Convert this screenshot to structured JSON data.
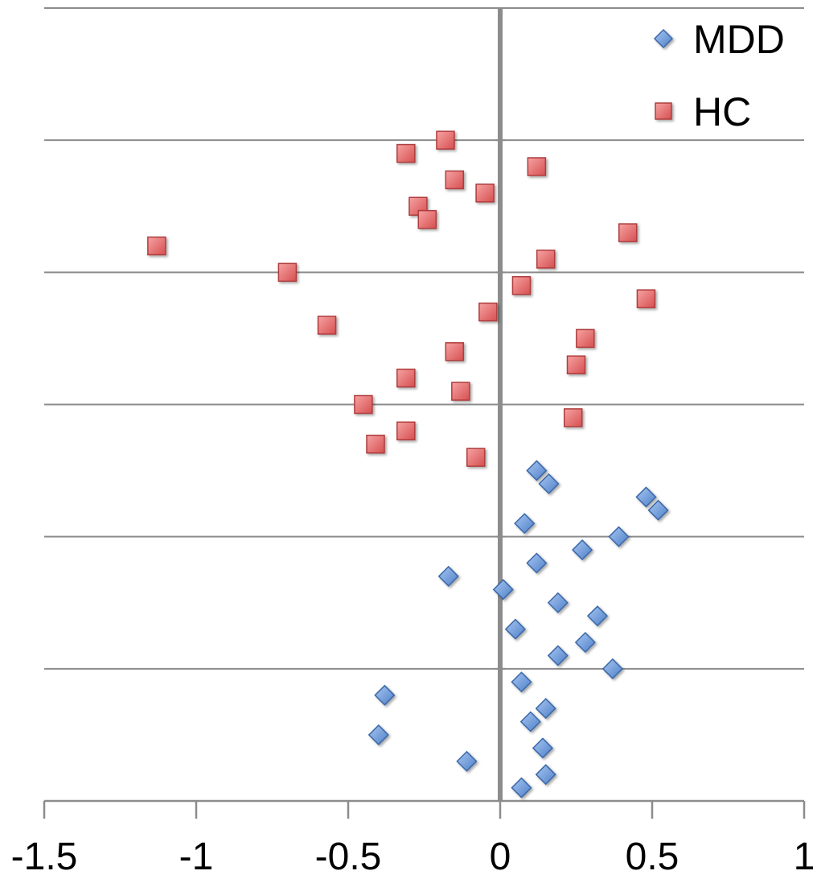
{
  "chart_data": {
    "type": "scatter",
    "title": "",
    "xlabel": "",
    "ylabel": "",
    "xlim": [
      -1.5,
      1
    ],
    "ylim": [
      0,
      60
    ],
    "x_ticks": [
      -1.5,
      -1,
      -0.5,
      0,
      0.5,
      1
    ],
    "x_tick_labels": [
      "-1.5",
      "-1",
      "-0.5",
      "0",
      "0.5",
      "1"
    ],
    "y_gridlines": [
      10,
      20,
      30,
      40,
      50,
      60
    ],
    "y_ticks_labeled": false,
    "grid": true,
    "legend_position": "top-right",
    "series": [
      {
        "name": "MDD",
        "marker": "diamond",
        "color": "#5b8fd6",
        "stroke": "#3a68a8",
        "points": [
          {
            "x": 0.12,
            "y": 25
          },
          {
            "x": 0.16,
            "y": 24
          },
          {
            "x": 0.48,
            "y": 23
          },
          {
            "x": 0.52,
            "y": 22
          },
          {
            "x": 0.08,
            "y": 21
          },
          {
            "x": 0.39,
            "y": 20
          },
          {
            "x": 0.27,
            "y": 19
          },
          {
            "x": 0.12,
            "y": 18
          },
          {
            "x": -0.17,
            "y": 17
          },
          {
            "x": 0.01,
            "y": 16
          },
          {
            "x": 0.19,
            "y": 15
          },
          {
            "x": 0.32,
            "y": 14
          },
          {
            "x": 0.05,
            "y": 13
          },
          {
            "x": 0.28,
            "y": 12
          },
          {
            "x": 0.19,
            "y": 11
          },
          {
            "x": 0.37,
            "y": 10
          },
          {
            "x": 0.07,
            "y": 9
          },
          {
            "x": -0.38,
            "y": 8
          },
          {
            "x": 0.15,
            "y": 7
          },
          {
            "x": 0.1,
            "y": 6
          },
          {
            "x": -0.4,
            "y": 5
          },
          {
            "x": 0.14,
            "y": 4
          },
          {
            "x": -0.11,
            "y": 3
          },
          {
            "x": 0.15,
            "y": 2
          },
          {
            "x": 0.07,
            "y": 1
          }
        ]
      },
      {
        "name": "HC",
        "marker": "square",
        "color": "#e8696a",
        "stroke": "#b03c3c",
        "points": [
          {
            "x": -0.18,
            "y": 50
          },
          {
            "x": -0.31,
            "y": 49
          },
          {
            "x": 0.12,
            "y": 48
          },
          {
            "x": -0.15,
            "y": 47
          },
          {
            "x": -0.05,
            "y": 46
          },
          {
            "x": -0.27,
            "y": 45
          },
          {
            "x": -0.24,
            "y": 44
          },
          {
            "x": 0.42,
            "y": 43
          },
          {
            "x": -1.13,
            "y": 42
          },
          {
            "x": 0.15,
            "y": 41
          },
          {
            "x": -0.7,
            "y": 40
          },
          {
            "x": 0.07,
            "y": 39
          },
          {
            "x": 0.48,
            "y": 38
          },
          {
            "x": -0.04,
            "y": 37
          },
          {
            "x": -0.57,
            "y": 36
          },
          {
            "x": 0.28,
            "y": 35
          },
          {
            "x": -0.15,
            "y": 34
          },
          {
            "x": 0.25,
            "y": 33
          },
          {
            "x": -0.31,
            "y": 32
          },
          {
            "x": -0.13,
            "y": 31
          },
          {
            "x": -0.45,
            "y": 30
          },
          {
            "x": 0.24,
            "y": 29
          },
          {
            "x": -0.31,
            "y": 28
          },
          {
            "x": -0.41,
            "y": 27
          },
          {
            "x": -0.08,
            "y": 26
          }
        ]
      }
    ]
  }
}
